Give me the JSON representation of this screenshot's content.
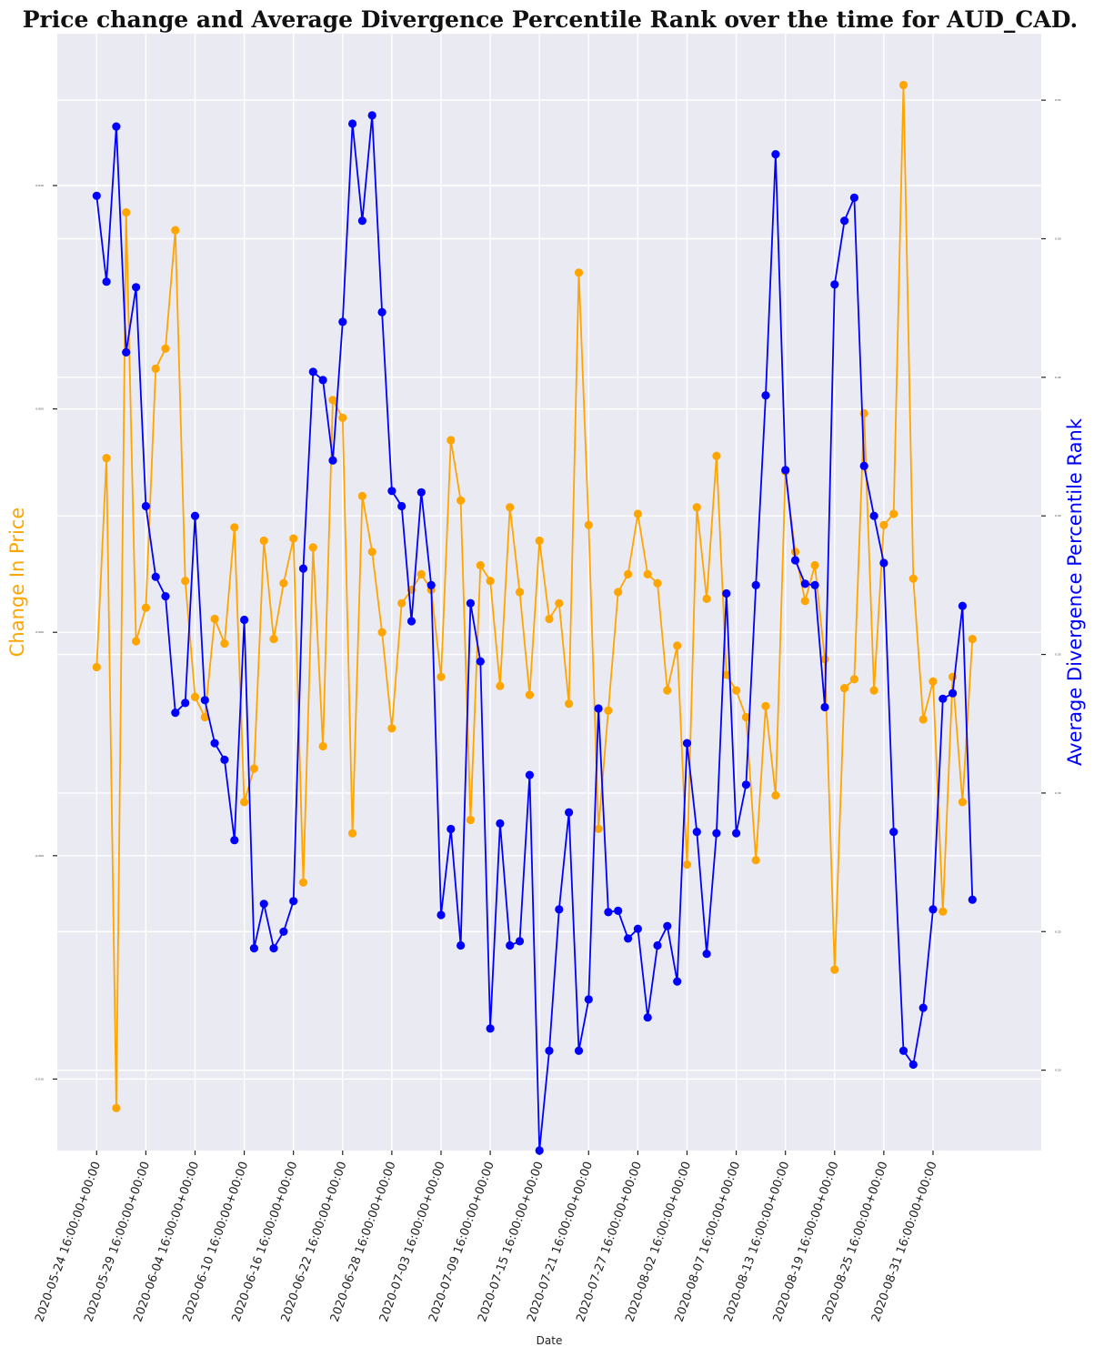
{
  "chart_data": {
    "type": "line",
    "title": "Price change and Average Divergence Percentile Rank over the time for AUD_CAD.",
    "xlabel": "Date",
    "ylabel_left": "Change In Price",
    "ylabel_right": "Average Divergence Percentile Rank",
    "colors": {
      "left": "#ffa500",
      "right": "#0000ff",
      "plot_bg": "#eaeaf2",
      "grid": "#ffffff"
    },
    "grid": true,
    "ylim_left": [
      -0.0116,
      0.0134
    ],
    "ylim_right": [
      0.171,
      0.574
    ],
    "xlim": [
      -4,
      96
    ],
    "x_ticks": [
      {
        "index": 0,
        "label": "2020-05-24 16:00:00+00:00"
      },
      {
        "index": 5,
        "label": "2020-05-29 16:00:00+00:00"
      },
      {
        "index": 10,
        "label": "2020-06-04 16:00:00+00:00"
      },
      {
        "index": 15,
        "label": "2020-06-10 16:00:00+00:00"
      },
      {
        "index": 20,
        "label": "2020-06-16 16:00:00+00:00"
      },
      {
        "index": 25,
        "label": "2020-06-22 16:00:00+00:00"
      },
      {
        "index": 30,
        "label": "2020-06-28 16:00:00+00:00"
      },
      {
        "index": 35,
        "label": "2020-07-03 16:00:00+00:00"
      },
      {
        "index": 40,
        "label": "2020-07-09 16:00:00+00:00"
      },
      {
        "index": 45,
        "label": "2020-07-15 16:00:00+00:00"
      },
      {
        "index": 50,
        "label": "2020-07-21 16:00:00+00:00"
      },
      {
        "index": 55,
        "label": "2020-07-27 16:00:00+00:00"
      },
      {
        "index": 60,
        "label": "2020-08-02 16:00:00+00:00"
      },
      {
        "index": 65,
        "label": "2020-08-07 16:00:00+00:00"
      },
      {
        "index": 70,
        "label": "2020-08-13 16:00:00+00:00"
      },
      {
        "index": 75,
        "label": "2020-08-19 16:00:00+00:00"
      },
      {
        "index": 80,
        "label": "2020-08-25 16:00:00+00:00"
      },
      {
        "index": 85,
        "label": "2020-08-31 16:00:00+00:00"
      }
    ],
    "yticks_left": [
      {
        "value": 0.01,
        "label": "0.010"
      },
      {
        "value": 0.005,
        "label": "0.005"
      },
      {
        "value": 0.0,
        "label": "0.000"
      },
      {
        "value": -0.005,
        "label": "-0.005"
      },
      {
        "value": -0.01,
        "label": "-0.010"
      }
    ],
    "yticks_right": [
      {
        "value": 0.55,
        "label": "0.55"
      },
      {
        "value": 0.5,
        "label": "0.50"
      },
      {
        "value": 0.45,
        "label": "0.45"
      },
      {
        "value": 0.4,
        "label": "0.40"
      },
      {
        "value": 0.35,
        "label": "0.35"
      },
      {
        "value": 0.3,
        "label": "0.30"
      },
      {
        "value": 0.25,
        "label": "0.25"
      },
      {
        "value": 0.2,
        "label": "0.20"
      }
    ],
    "series": [
      {
        "axis": "left",
        "values": [
          -0.00078,
          0.0039,
          -0.01065,
          0.0094,
          -0.0002,
          0.00055,
          0.0059,
          0.00635,
          0.009,
          0.00115,
          -0.00145,
          -0.0019,
          0.0003,
          -0.00025,
          0.00235,
          -0.0038,
          -0.00305,
          0.00205,
          -0.00015,
          0.0011,
          0.0021,
          -0.0056,
          0.0019,
          -0.00255,
          0.0052,
          0.0048,
          -0.0045,
          0.00305,
          0.0018,
          0.0,
          -0.00215,
          0.00065,
          0.00095,
          0.0013,
          0.00095,
          -0.001,
          0.0043,
          0.00295,
          -0.0042,
          0.0015,
          0.00115,
          -0.0012,
          0.0028,
          0.0009,
          -0.0014,
          0.00205,
          0.0003,
          0.00065,
          -0.0016,
          0.00805,
          0.0024,
          -0.0044,
          -0.00175,
          0.0009,
          0.0013,
          0.00265,
          0.0013,
          0.0011,
          -0.0013,
          -0.0003,
          -0.0052,
          0.0028,
          0.00075,
          0.00395,
          -0.00095,
          -0.0013,
          -0.0019,
          -0.0051,
          -0.00165,
          -0.00365,
          0.0036,
          0.0018,
          0.0007,
          0.0015,
          -0.0006,
          -0.00755,
          -0.00125,
          -0.00105,
          0.0049,
          -0.0013,
          0.0024,
          0.00265,
          0.01225,
          0.0012,
          -0.00195,
          -0.0011,
          -0.00625,
          -0.001,
          -0.0038,
          -0.00015
        ]
      },
      {
        "axis": "right",
        "values": [
          0.5155,
          0.4845,
          0.5405,
          0.459,
          0.4825,
          0.4035,
          0.378,
          0.371,
          0.329,
          0.3325,
          0.4,
          0.3335,
          0.318,
          0.312,
          0.283,
          0.3625,
          0.244,
          0.26,
          0.244,
          0.25,
          0.261,
          0.381,
          0.452,
          0.449,
          0.42,
          0.47,
          0.5415,
          0.5065,
          0.5445,
          0.4735,
          0.409,
          0.4035,
          0.362,
          0.4085,
          0.375,
          0.256,
          0.287,
          0.245,
          0.3685,
          0.3475,
          0.215,
          0.289,
          0.245,
          0.2465,
          0.3065,
          0.171,
          0.207,
          0.258,
          0.293,
          0.207,
          0.2255,
          0.3305,
          0.257,
          0.2575,
          0.2475,
          0.251,
          0.219,
          0.245,
          0.252,
          0.232,
          0.318,
          0.286,
          0.242,
          0.2855,
          0.372,
          0.2855,
          0.303,
          0.375,
          0.4435,
          0.5305,
          0.4165,
          0.384,
          0.3755,
          0.375,
          0.331,
          0.4835,
          0.5065,
          0.5148,
          0.418,
          0.4,
          0.383,
          0.286,
          0.207,
          0.202,
          0.2225,
          0.258,
          0.334,
          0.336,
          0.3675,
          0.2615
        ]
      }
    ]
  }
}
